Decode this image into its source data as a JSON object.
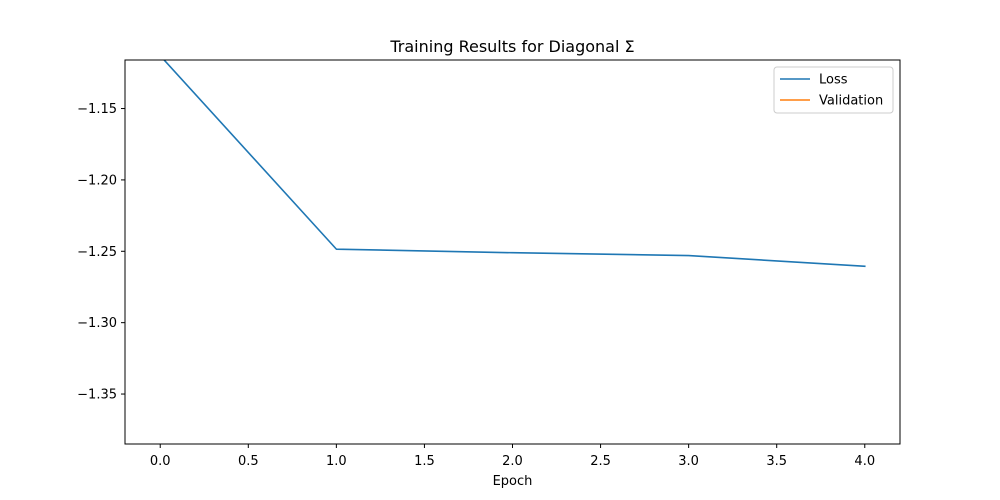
{
  "chart_data": {
    "type": "line",
    "title": "Training Results for Diagonal Σ",
    "xlabel": "Epoch",
    "ylabel": "",
    "xlim": [
      -0.2,
      4.2
    ],
    "ylim": [
      -1.385,
      -1.116
    ],
    "xticks": [
      0.0,
      0.5,
      1.0,
      1.5,
      2.0,
      2.5,
      3.0,
      3.5,
      4.0
    ],
    "xtick_labels": [
      "0.0",
      "0.5",
      "1.0",
      "1.5",
      "2.0",
      "2.5",
      "3.0",
      "3.5",
      "4.0"
    ],
    "yticks": [
      -1.15,
      -1.2,
      -1.25,
      -1.3,
      -1.35
    ],
    "ytick_labels": [
      "−1.15",
      "−1.20",
      "−1.25",
      "−1.30",
      "−1.35"
    ],
    "grid": false,
    "legend_position": "top-right",
    "series": [
      {
        "name": "Loss",
        "color": "#1f77b4",
        "x": [
          0,
          1,
          2,
          3,
          4
        ],
        "y": [
          -1.113,
          -1.2485,
          -1.251,
          -1.253,
          -1.2605
        ]
      },
      {
        "name": "Validation",
        "color": "#ff7f0e",
        "x": [],
        "y": []
      }
    ]
  }
}
